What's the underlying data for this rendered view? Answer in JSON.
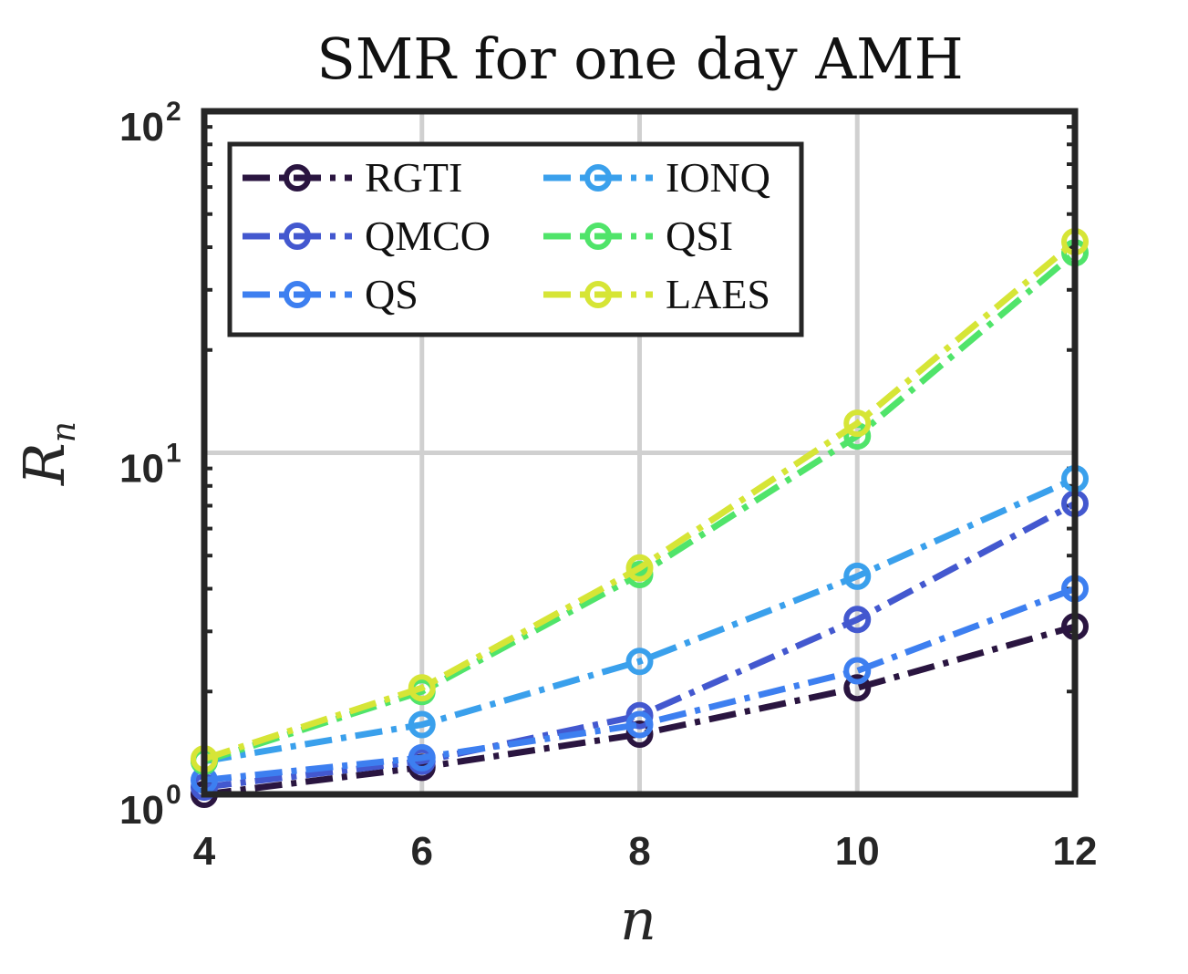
{
  "chart_data": {
    "type": "line",
    "title": "SMR for one day AMH",
    "xlabel": "n",
    "ylabel": "R",
    "ylabel_subscript": "n",
    "yscale": "log",
    "x": [
      4,
      6,
      8,
      10,
      12
    ],
    "xlim": [
      4,
      12
    ],
    "ylim": [
      1,
      100
    ],
    "xticks": [
      "4",
      "6",
      "8",
      "10",
      "12"
    ],
    "yticks": [
      {
        "base": "10",
        "exp": "0",
        "value": 1
      },
      {
        "base": "10",
        "exp": "1",
        "value": 10
      },
      {
        "base": "10",
        "exp": "2",
        "value": 100
      }
    ],
    "grid": true,
    "legend_position": "top-left",
    "series": [
      {
        "name": "RGTI",
        "color": "#2a1540",
        "values": [
          1.0,
          1.2,
          1.5,
          2.05,
          3.1
        ]
      },
      {
        "name": "QMCO",
        "color": "#4358cf",
        "values": [
          1.05,
          1.25,
          1.7,
          3.25,
          7.1
        ]
      },
      {
        "name": "QS",
        "color": "#3d7ff0",
        "values": [
          1.1,
          1.28,
          1.6,
          2.3,
          4.0
        ]
      },
      {
        "name": "IONQ",
        "color": "#3aa0ec",
        "values": [
          1.25,
          1.6,
          2.45,
          4.35,
          8.4
        ]
      },
      {
        "name": "QSI",
        "color": "#50e46a",
        "values": [
          1.25,
          2.0,
          4.4,
          11.2,
          38.5
        ]
      },
      {
        "name": "LAES",
        "color": "#d6e536",
        "values": [
          1.27,
          2.05,
          4.6,
          12.2,
          41.5
        ]
      }
    ]
  }
}
